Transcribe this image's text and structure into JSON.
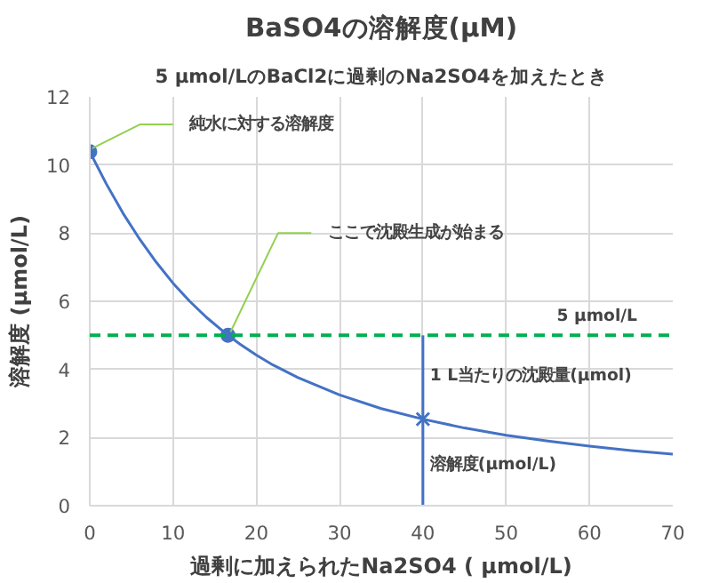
{
  "chart_data": {
    "type": "line",
    "title": "BaSO4の溶解度(μM)",
    "subtitle": "5 μmol/LのBaCl2に過剰のNa2SO4を加えたとき",
    "xlabel": "過剰に加えられたNa2SO4 ( μmol/L)",
    "ylabel": "溶解度 (μmol/L)",
    "xlim": [
      0,
      70
    ],
    "ylim": [
      0,
      12
    ],
    "xticks": [
      0,
      10,
      20,
      30,
      40,
      50,
      60,
      70
    ],
    "yticks": [
      0,
      2,
      4,
      6,
      8,
      10,
      12
    ],
    "grid": true,
    "series": [
      {
        "color": "#4472c4",
        "x": [
          0,
          2,
          4,
          6,
          8,
          10,
          12,
          14,
          16.6,
          18,
          20,
          22,
          25,
          30,
          35,
          40,
          45,
          50,
          55,
          60,
          65,
          70
        ],
        "values": [
          10.39,
          9.44,
          8.58,
          7.82,
          7.14,
          6.53,
          6.0,
          5.53,
          5.0,
          4.75,
          4.42,
          4.13,
          3.76,
          3.25,
          2.85,
          2.54,
          2.28,
          2.07,
          1.9,
          1.75,
          1.62,
          1.51
        ]
      },
      {
        "type": "scatter",
        "marker": "circle",
        "color": "#4472c4",
        "x": [
          0,
          16.6
        ],
        "values": [
          10.39,
          5.0
        ]
      },
      {
        "type": "line",
        "color": "#4472c4",
        "x": [
          40,
          40
        ],
        "values": [
          0,
          5
        ]
      },
      {
        "type": "scatter",
        "marker": "cross",
        "color": "#4472c4",
        "x": [
          40
        ],
        "values": [
          2.54
        ]
      }
    ],
    "ref_lines": [
      {
        "axis": "y",
        "value": 5,
        "label": "5 μmol/L",
        "color": "#00b050",
        "line_style": "dashed"
      }
    ],
    "annotations": [
      {
        "text": "純水に対する溶解度",
        "x": 0,
        "y": 10.39
      },
      {
        "text": "ここで沈殿生成が始まる",
        "x": 16.6,
        "y": 5.0
      },
      {
        "text": "1 L当たりの沈殿量(μmol)",
        "x": 40,
        "y": 3.8
      },
      {
        "text": "溶解度(μmol/L)",
        "x": 40,
        "y": 1.2
      }
    ]
  }
}
